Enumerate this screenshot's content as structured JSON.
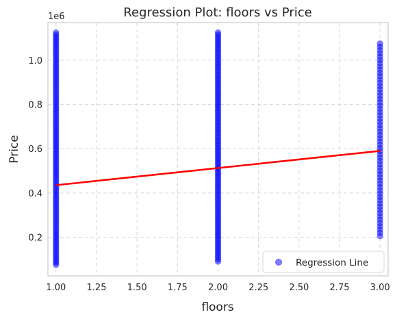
{
  "chart_data": {
    "type": "scatter",
    "title": "Regression Plot: floors vs Price",
    "xlabel": "floors",
    "ylabel": "Price",
    "y_offset_label": "1e6",
    "xlim": [
      0.95,
      3.05
    ],
    "ylim": [
      0.025,
      1.17
    ],
    "y_scale_note": "values in units of 1e6",
    "x_ticks": [
      "1.00",
      "1.25",
      "1.50",
      "1.75",
      "2.00",
      "2.25",
      "2.50",
      "2.75",
      "3.00"
    ],
    "x_tick_values": [
      1.0,
      1.25,
      1.5,
      1.75,
      2.0,
      2.25,
      2.5,
      2.75,
      3.0
    ],
    "y_ticks": [
      "0.2",
      "0.4",
      "0.6",
      "0.8",
      "1.0"
    ],
    "y_tick_values": [
      0.2,
      0.4,
      0.6,
      0.8,
      1.0
    ],
    "grid": true,
    "legend_position": "bottom-right",
    "series": [
      {
        "name": "Regression Line",
        "kind": "scatter",
        "color": "#0000ff",
        "alpha": 0.5,
        "groups": [
          {
            "x": 1.0,
            "y_min": 0.075,
            "y_max": 1.125
          },
          {
            "x": 2.0,
            "y_min": 0.09,
            "y_max": 1.125
          },
          {
            "x": 3.0,
            "y_min": 0.205,
            "y_max": 1.075
          }
        ]
      },
      {
        "kind": "line",
        "color": "#ff0000",
        "x": [
          1.0,
          3.0
        ],
        "y": [
          0.435,
          0.59
        ]
      }
    ]
  }
}
